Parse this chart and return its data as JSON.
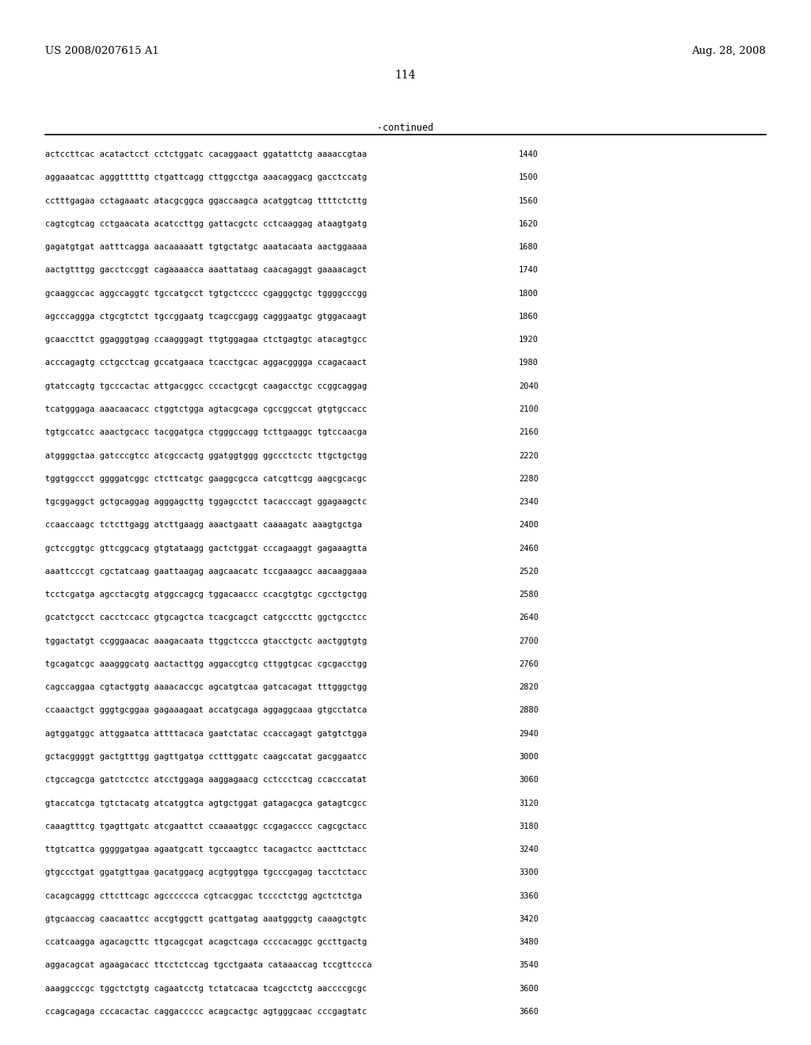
{
  "header_left": "US 2008/0207615 A1",
  "header_right": "Aug. 28, 2008",
  "page_number": "114",
  "continued_label": "-continued",
  "background_color": "#ffffff",
  "text_color": "#000000",
  "font_size": 7.5,
  "header_font_size": 9.5,
  "page_num_font_size": 10,
  "continued_font_size": 8.5,
  "sequence_lines": [
    [
      "actccttcac acatactcct cctctggatc cacaggaact ggatattctg aaaaccgtaa",
      "1440"
    ],
    [
      "aggaaatcac agggtttttg ctgattcagg cttggcctga aaacaggacg gacctccatg",
      "1500"
    ],
    [
      "cctttgagaa cctagaaatc atacgcggca ggaccaagca acatggtcag ttttctcttg",
      "1560"
    ],
    [
      "cagtcgtcag cctgaacata acatccttgg gattacgctc cctcaaggag ataagtgatg",
      "1620"
    ],
    [
      "gagatgtgat aatttcagga aacaaaaatt tgtgctatgc aaatacaata aactggaaaa",
      "1680"
    ],
    [
      "aactgtttgg gacctccggt cagaaaacca aaattataag caacagaggt gaaaacagct",
      "1740"
    ],
    [
      "gcaaggccac aggccaggtc tgccatgcct tgtgctcccc cgagggctgc tggggcccgg",
      "1800"
    ],
    [
      "agcccaggga ctgcgtctct tgccggaatg tcagccgagg cagggaatgc gtggacaagt",
      "1860"
    ],
    [
      "gcaaccttct ggagggtgag ccaagggagt ttgtggagaa ctctgagtgc atacagtgcc",
      "1920"
    ],
    [
      "acccagagtg cctgcctcag gccatgaaca tcacctgcac aggacgggga ccagacaact",
      "1980"
    ],
    [
      "gtatccagtg tgcccactac attgacggcc cccactgcgt caagacctgc ccggcaggag",
      "2040"
    ],
    [
      "tcatgggaga aaacaacacc ctggtctgga agtacgcaga cgccggccat gtgtgccacc",
      "2100"
    ],
    [
      "tgtgccatcc aaactgcacc tacggatgca ctgggccagg tcttgaaggc tgtccaacga",
      "2160"
    ],
    [
      "atggggctaa gatcccgtcc atcgccactg ggatggtggg ggccctcctc ttgctgctgg",
      "2220"
    ],
    [
      "tggtggccct ggggatcggc ctcttcatgc gaaggcgcca catcgttcgg aagcgcacgc",
      "2280"
    ],
    [
      "tgcggaggct gctgcaggag agggagcttg tggagcctct tacacccagt ggagaagctc",
      "2340"
    ],
    [
      "ccaaccaagc tctcttgagg atcttgaagg aaactgaatt caaaagatc aaagtgctga",
      "2400"
    ],
    [
      "gctccggtgc gttcggcacg gtgtataagg gactctggat cccagaaggt gagaaagtta",
      "2460"
    ],
    [
      "aaattcccgt cgctatcaag gaattaagag aagcaacatc tccgaaagcc aacaaggaaa",
      "2520"
    ],
    [
      "tcctcgatga agcctacgtg atggccagcg tggacaaccc ccacgtgtgc cgcctgctgg",
      "2580"
    ],
    [
      "gcatctgcct cacctccacc gtgcagctca tcacgcagct catgcccttc ggctgcctcc",
      "2640"
    ],
    [
      "tggactatgt ccgggaacac aaagacaata ttggctccca gtacctgctc aactggtgtg",
      "2700"
    ],
    [
      "tgcagatcgc aaagggcatg aactacttgg aggaccgtcg cttggtgcac cgcgacctgg",
      "2760"
    ],
    [
      "cagccaggaa cgtactggtg aaaacaccgc agcatgtcaa gatcacagat tttgggctgg",
      "2820"
    ],
    [
      "ccaaactgct gggtgcggaa gagaaagaat accatgcaga aggaggcaaa gtgcctatca",
      "2880"
    ],
    [
      "agtggatggc attggaatca attttacaca gaatctatac ccaccagagt gatgtctgga",
      "2940"
    ],
    [
      "gctacggggt gactgtttgg gagttgatga cctttggatc caagccatat gacggaatcc",
      "3000"
    ],
    [
      "ctgccagcga gatctcctcc atcctggaga aaggagaacg cctccctcag ccacccatat",
      "3060"
    ],
    [
      "gtaccatcga tgtctacatg atcatggtca agtgctggat gatagacgca gatagtcgcc",
      "3120"
    ],
    [
      "caaagtttcg tgagttgatc atcgaattct ccaaaatggc ccgagacccc cagcgctacc",
      "3180"
    ],
    [
      "ttgtcattca gggggatgaa agaatgcatt tgccaagtcc tacagactcc aacttctacc",
      "3240"
    ],
    [
      "gtgccctgat ggatgttgaa gacatggacg acgtggtgga tgcccgagag tacctctacc",
      "3300"
    ],
    [
      "cacagcaggg cttcttcagc agcccccca cgtcacggac tcccctctgg agctctctga",
      "3360"
    ],
    [
      "gtgcaaccag caacaattcc accgtggctt gcattgatag aaatgggctg caaagctgtc",
      "3420"
    ],
    [
      "ccatcaagga agacagcttc ttgcagcgat acagctcaga ccccacaggc gccttgactg",
      "3480"
    ],
    [
      "aggacagcat agaagacacc ttcctctccag tgcctgaata cataaaccag tccgttccca",
      "3540"
    ],
    [
      "aaaggcccgc tggctctgtg cagaatcctg tctatcacaa tcagcctctg aaccccgcgc",
      "3600"
    ],
    [
      "ccagcagaga cccacactac caggaccccc acagcactgc agtgggcaac cccgagtatc",
      "3660"
    ]
  ]
}
